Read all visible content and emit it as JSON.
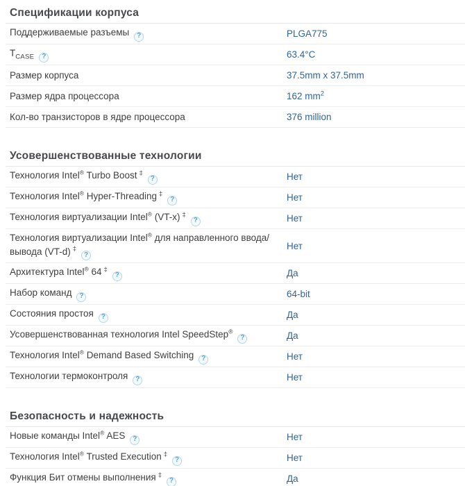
{
  "help_icon": {
    "glyph": "?"
  },
  "colors": {
    "value_text": "#326496",
    "label_text": "#3f3f3f",
    "section_title_text": "#47494d",
    "divider": "#ededed",
    "help_border": "#b5d7e8",
    "help_fill": "#f2fafd",
    "help_glyph": "#62a3c8"
  },
  "sections": [
    {
      "title": "Спецификации корпуса",
      "rows": [
        {
          "label": "Поддерживаемые разъемы",
          "help": true,
          "value": "PLGA775"
        },
        {
          "label": "T",
          "label_sub": "CASE",
          "help": true,
          "value": "63.4°C"
        },
        {
          "label": "Размер корпуса",
          "help": false,
          "value": "37.5mm x 37.5mm"
        },
        {
          "label": "Размер ядра процессора",
          "help": false,
          "value": "162 mm",
          "value_sup": "2"
        },
        {
          "label": "Кол-во транзисторов в ядре процессора",
          "help": false,
          "value": "376 million"
        }
      ]
    },
    {
      "title": "Усовершенствованные технологии",
      "rows": [
        {
          "label": "Технология Intel® Turbo Boost",
          "dagger": "‡",
          "help": true,
          "value": "Нет"
        },
        {
          "label": "Технология Intel® Hyper-Threading",
          "dagger": "‡",
          "help": true,
          "value": "Нет"
        },
        {
          "label": "Технология виртуализации Intel® (VT-x)",
          "dagger": "‡",
          "help": true,
          "value": "Нет"
        },
        {
          "label": "Технология виртуализации Intel® для направленного ввода/вывода (VT-d)",
          "dagger": "‡",
          "help": true,
          "value": "Нет",
          "two_line": true
        },
        {
          "label": "Архитектура Intel® 64",
          "dagger": "‡",
          "help": true,
          "value": "Да"
        },
        {
          "label": "Набор команд",
          "help": true,
          "value": "64-bit"
        },
        {
          "label": "Состояния простоя",
          "help": true,
          "value": "Да"
        },
        {
          "label": "Усовершенствованная технология Intel SpeedStep®",
          "help": true,
          "value": "Да"
        },
        {
          "label": "Технология Intel® Demand Based Switching",
          "help": true,
          "value": "Нет"
        },
        {
          "label": "Технологии термоконтроля",
          "help": true,
          "value": "Нет"
        }
      ]
    },
    {
      "title": "Безопасность и надежность",
      "rows": [
        {
          "label": "Новые команды Intel® AES",
          "help": true,
          "value": "Нет"
        },
        {
          "label": "Технология Intel® Trusted Execution",
          "dagger": "‡",
          "help": true,
          "value": "Нет"
        },
        {
          "label": "Функция Бит отмены выполнения",
          "dagger": "‡",
          "help": true,
          "value": "Да"
        }
      ]
    }
  ]
}
